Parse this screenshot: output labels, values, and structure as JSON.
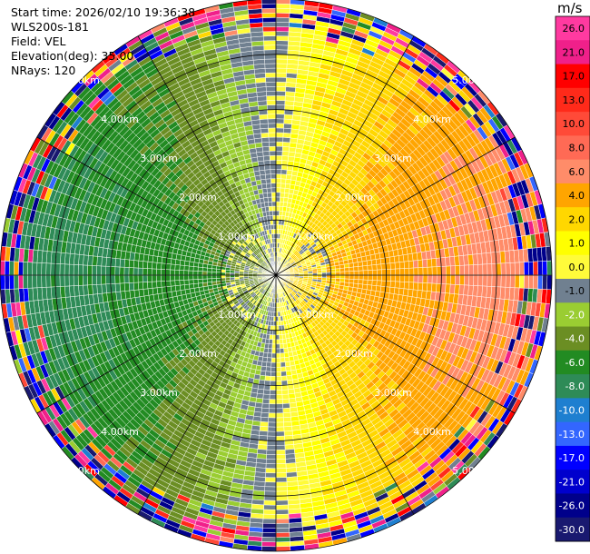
{
  "header": {
    "start_time": "Start time: 2026/02/10 19:36:38",
    "instrument": "WLS200s-181",
    "field": "Field: VEL",
    "elevation": "Elevation(deg): 35.00",
    "nrays": "NRays: 120"
  },
  "chart_data": {
    "type": "heatmap",
    "projection": "polar-ppi",
    "field": "VEL",
    "units": "m/s",
    "nrays": 120,
    "max_range_km": 5.0,
    "range_rings_km": [
      1.0,
      2.0,
      3.0,
      4.0,
      5.0
    ],
    "range_ring_labels": [
      "1.00km",
      "2.00km",
      "3.00km",
      "4.00km",
      "5.00km"
    ],
    "colorbar": {
      "title": "m/s",
      "ticks": [
        "26.0",
        "21.0",
        "17.0",
        "13.0",
        "10.0",
        "8.0",
        "6.0",
        "4.0",
        "2.0",
        "1.0",
        "0.0",
        "-1.0",
        "-2.0",
        "-4.0",
        "-6.0",
        "-8.0",
        "-10.0",
        "-13.0",
        "-17.0",
        "-21.0",
        "-26.0",
        "-30.0"
      ],
      "bins": [
        {
          "min": 26,
          "max": 30,
          "color": "#ff3aa0"
        },
        {
          "min": 21,
          "max": 26,
          "color": "#f0208a"
        },
        {
          "min": 17,
          "max": 21,
          "color": "#ff0000"
        },
        {
          "min": 13,
          "max": 17,
          "color": "#ff2a1a"
        },
        {
          "min": 10,
          "max": 13,
          "color": "#ff4a38"
        },
        {
          "min": 8,
          "max": 10,
          "color": "#ff6a55"
        },
        {
          "min": 6,
          "max": 8,
          "color": "#ff8c69"
        },
        {
          "min": 4,
          "max": 6,
          "color": "#ffa500"
        },
        {
          "min": 2,
          "max": 4,
          "color": "#ffd700"
        },
        {
          "min": 1,
          "max": 2,
          "color": "#ffff00"
        },
        {
          "min": 0,
          "max": 1,
          "color": "#fffb3a"
        },
        {
          "min": -1,
          "max": 0,
          "color": "#708090"
        },
        {
          "min": -2,
          "max": -1,
          "color": "#9acd32"
        },
        {
          "min": -4,
          "max": -2,
          "color": "#6b8e23"
        },
        {
          "min": -6,
          "max": -4,
          "color": "#228b22"
        },
        {
          "min": -8,
          "max": -6,
          "color": "#2e8b57"
        },
        {
          "min": -10,
          "max": -8,
          "color": "#1e7fd0"
        },
        {
          "min": -13,
          "max": -10,
          "color": "#3366ff"
        },
        {
          "min": -17,
          "max": -13,
          "color": "#0000ff"
        },
        {
          "min": -21,
          "max": -17,
          "color": "#0000cd"
        },
        {
          "min": -26,
          "max": -21,
          "color": "#00008b"
        },
        {
          "min": -30,
          "max": -26,
          "color": "#191970"
        }
      ]
    },
    "wind_model": {
      "radial_velocity_max_ms": 4.8,
      "max_velocity_azimuth_deg": 90,
      "note_colors": {
        "near_zero_gray": "#708090",
        "receding": "#ffff00",
        "approaching": "#228b22"
      }
    }
  }
}
